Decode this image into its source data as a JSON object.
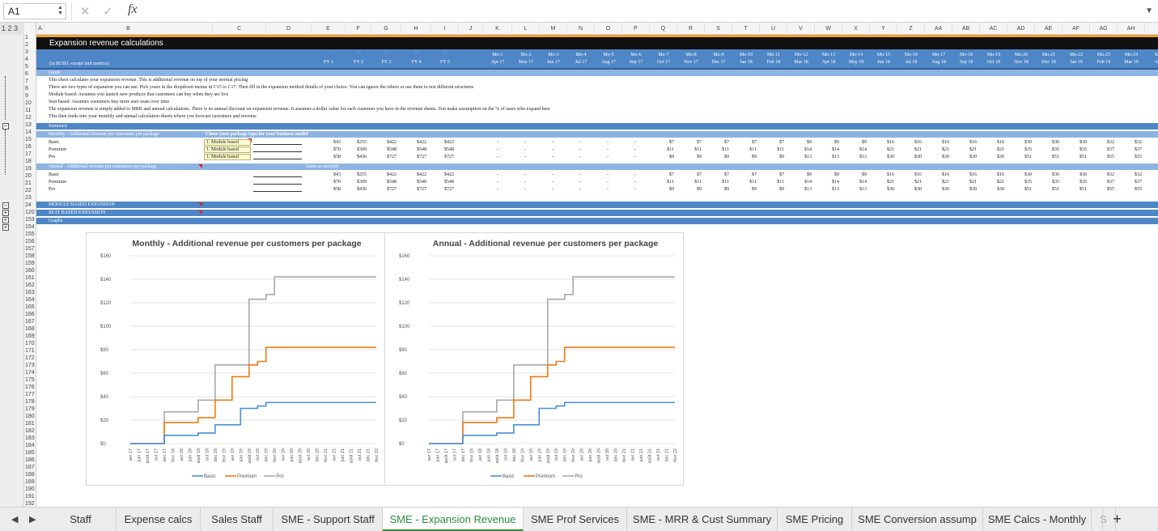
{
  "formula_bar": {
    "cell_ref": "A1",
    "fx_label": "fx",
    "cancel_icon": "x-icon",
    "confirm_icon": "check-icon",
    "formula": ""
  },
  "outline": {
    "levels_label": "1 2 3"
  },
  "columns": [
    "A",
    "B",
    "C",
    "D",
    "E",
    "F",
    "G",
    "H",
    "I",
    "J",
    "K",
    "L",
    "M",
    "N",
    "O",
    "P",
    "Q",
    "R",
    "S",
    "T",
    "U",
    "V",
    "W",
    "X",
    "Y",
    "Z",
    "AA",
    "AB",
    "AC",
    "AD",
    "AE",
    "AF",
    "AG",
    "AH",
    "AI"
  ],
  "rows": [
    "1",
    "2",
    "3",
    "4",
    "5",
    "6",
    "7",
    "8",
    "9",
    "10",
    "11",
    "12",
    "13",
    "14",
    "15",
    "16",
    "17",
    "18",
    "19",
    "20",
    "21",
    "22",
    "23",
    "24",
    "120",
    "153",
    "154",
    "155",
    "156",
    "157",
    "158",
    "159",
    "160",
    "161",
    "162",
    "163",
    "164",
    "165",
    "166",
    "167",
    "168",
    "169",
    "170",
    "171",
    "172",
    "173",
    "174",
    "175",
    "176",
    "177",
    "178",
    "179",
    "180",
    "181",
    "182",
    "183",
    "184",
    "185",
    "186",
    "187",
    "188",
    "189",
    "190",
    "191",
    "192",
    "193"
  ],
  "sheet": {
    "title": "Expansion revenue calculations",
    "fy_headers": [
      "FY 1",
      "FY 2",
      "FY 3",
      "FY 4",
      "FY 5"
    ],
    "fy_numbers": [
      "12",
      "24",
      "36",
      "48",
      "60"
    ],
    "units_label": "(in $USD, except unit metrics)",
    "mo_headers": [
      "Mo-1",
      "Mo-2",
      "Mo-3",
      "Mo-4",
      "Mo-5",
      "Mo-6",
      "Mo-7",
      "Mo-8",
      "Mo-9",
      "Mo-10",
      "Mo-11",
      "Mo-12",
      "Mo-13",
      "Mo-14",
      "Mo-15",
      "Mo-16",
      "Mo-17",
      "Mo-18",
      "Mo-19",
      "Mo-20",
      "Mo-21",
      "Mo-22",
      "Mo-23",
      "Mo-24",
      "Mo-25"
    ],
    "mo_dates": [
      "Apr 17",
      "May 17",
      "Jun 17",
      "Jul 17",
      "Aug 17",
      "Sep 17",
      "Oct 17",
      "Nov 17",
      "Dec 17",
      "Jan 18",
      "Feb 18",
      "Mar 18",
      "Apr 18",
      "May 18",
      "Jun 18",
      "Jul 18",
      "Aug 18",
      "Sep 18",
      "Oct 18",
      "Nov 18",
      "Dec 18",
      "Jan 19",
      "Feb 19",
      "Mar 19",
      "Apr 19"
    ],
    "guide_label": "Guide",
    "guide_lines": [
      "This sheet calculates your expansion revenue. This is additional revenue on top of your normal pricing",
      "There are two types of expansion you can use. Pick yours in the dropdown menus in C15 to C17. Then fill in the expansion method details of your choice. You can ignore the others or use them to test different structures",
      "Module based: Assumes you launch new products that customers can buy when they are live",
      "Seat based: Assumes customers buy more user seats over time",
      "The expansion revenue is simply added to MRR and annual calculations. There is no annual discount on expansion revenue. It assumes a dollar value for each customer you have in the revenue sheets. You make assumption on the % of users who expand here",
      "This then feeds into your monthly and annual calculation sheets where you forecast customers and revenue"
    ],
    "summary_label": "Summary",
    "monthly_label": "Monthly - Additional revenue per customers per package",
    "choose_label": "Chose your package type for your business model",
    "annual_label": "Annual - Additional revenue per customers per package",
    "same_label": "Same as monthly",
    "packages": [
      "Basic",
      "Premium",
      "Pro"
    ],
    "dropdowns": [
      "1. Module based",
      "1. Module based",
      "1. Module based"
    ],
    "fy_values": [
      [
        "$43",
        "$255",
        "$422",
        "$422",
        "$422"
      ],
      [
        "$70",
        "$309",
        "$548",
        "$548",
        "$548"
      ],
      [
        "$58",
        "$436",
        "$727",
        "$727",
        "$727"
      ]
    ],
    "mo_values": [
      [
        "-",
        "-",
        "-",
        "-",
        "-",
        "-",
        "$7",
        "$7",
        "$7",
        "$7",
        "$7",
        "$9",
        "$9",
        "$9",
        "$16",
        "$16",
        "$16",
        "$16",
        "$16",
        "$30",
        "$30",
        "$30",
        "$32",
        "$32",
        "$35"
      ],
      [
        "-",
        "-",
        "-",
        "-",
        "-",
        "-",
        "$11",
        "$11",
        "$11",
        "$11",
        "$11",
        "$14",
        "$14",
        "$14",
        "$21",
        "$21",
        "$21",
        "$21",
        "$21",
        "$35",
        "$35",
        "$35",
        "$37",
        "$37",
        "$46"
      ],
      [
        "-",
        "-",
        "-",
        "-",
        "-",
        "-",
        "$9",
        "$9",
        "$9",
        "$9",
        "$9",
        "$13",
        "$13",
        "$13",
        "$30",
        "$30",
        "$30",
        "$30",
        "$30",
        "$51",
        "$51",
        "$51",
        "$55",
        "$55",
        "$61"
      ]
    ],
    "module_label": "MODULE BASED EXPANSION",
    "seat_label": "SEAT BASED EXPANSION",
    "graphs_label": "Graphs"
  },
  "colors": {
    "header_blue": "#4e86c6",
    "dark_blue": "#2f5f9a",
    "light_blue": "#8db3e2",
    "title_black": "#111111",
    "accent_orange": "#f0a030",
    "basic": "#4a90d9",
    "premium": "#f07a10",
    "pro": "#a9a9a9"
  },
  "chart_data": [
    {
      "type": "line",
      "title": "Monthly - Additional revenue per customers per package",
      "x": [
        "avr 17",
        "juin 17",
        "août 17",
        "oct 17",
        "déc 17",
        "févr 18",
        "avr 18",
        "juin 18",
        "août 18",
        "oct 18",
        "déc 18",
        "févr 19",
        "avr 19",
        "juin 19",
        "août 19",
        "oct 19",
        "déc 19",
        "févr 20",
        "avr 20",
        "juin 20",
        "août 20",
        "oct 20",
        "déc 20",
        "févr 21",
        "avr 21",
        "juin 21",
        "août 21",
        "oct 21",
        "déc 21",
        "févr 22"
      ],
      "ylim": [
        0,
        160
      ],
      "yticks": [
        "$0",
        "$20",
        "$40",
        "$60",
        "$80",
        "$100",
        "$120",
        "$140",
        "$160"
      ],
      "series": [
        {
          "name": "Basic",
          "values": [
            0,
            0,
            0,
            0,
            7,
            7,
            7,
            7,
            9,
            9,
            16,
            16,
            16,
            30,
            30,
            32,
            35,
            35,
            35,
            35,
            35,
            35,
            35,
            35,
            35,
            35,
            35,
            35,
            35,
            35
          ]
        },
        {
          "name": "Premium",
          "values": [
            0,
            0,
            0,
            0,
            18,
            18,
            18,
            18,
            22,
            22,
            37,
            37,
            57,
            57,
            67,
            70,
            82,
            82,
            82,
            82,
            82,
            82,
            82,
            82,
            82,
            82,
            82,
            82,
            82,
            82
          ]
        },
        {
          "name": "Pro",
          "values": [
            0,
            0,
            0,
            0,
            27,
            27,
            27,
            27,
            37,
            37,
            67,
            67,
            67,
            67,
            123,
            123,
            127,
            142,
            142,
            142,
            142,
            142,
            142,
            142,
            142,
            142,
            142,
            142,
            142,
            142
          ]
        }
      ]
    },
    {
      "type": "line",
      "title": "Annual - Additional revenue per customers per package",
      "x": [
        "avr 17",
        "juin 17",
        "août 17",
        "oct 17",
        "déc 17",
        "févr 18",
        "avr 18",
        "juin 18",
        "août 18",
        "oct 18",
        "déc 18",
        "févr 19",
        "avr 19",
        "juin 19",
        "août 19",
        "oct 19",
        "déc 19",
        "févr 20",
        "avr 20",
        "juin 20",
        "août 20",
        "oct 20",
        "déc 20",
        "févr 21",
        "avr 21",
        "juin 21",
        "août 21",
        "oct 21",
        "déc 21",
        "févr 22"
      ],
      "ylim": [
        0,
        160
      ],
      "yticks": [
        "$0",
        "$20",
        "$40",
        "$60",
        "$80",
        "$100",
        "$120",
        "$140",
        "$160"
      ],
      "series": [
        {
          "name": "Basic",
          "values": [
            0,
            0,
            0,
            0,
            7,
            7,
            7,
            7,
            9,
            9,
            16,
            16,
            16,
            30,
            30,
            32,
            35,
            35,
            35,
            35,
            35,
            35,
            35,
            35,
            35,
            35,
            35,
            35,
            35,
            35
          ]
        },
        {
          "name": "Premium",
          "values": [
            0,
            0,
            0,
            0,
            18,
            18,
            18,
            18,
            22,
            22,
            37,
            37,
            57,
            57,
            67,
            70,
            82,
            82,
            82,
            82,
            82,
            82,
            82,
            82,
            82,
            82,
            82,
            82,
            82,
            82
          ]
        },
        {
          "name": "Pro",
          "values": [
            0,
            0,
            0,
            0,
            27,
            27,
            27,
            27,
            37,
            37,
            67,
            67,
            67,
            67,
            123,
            123,
            127,
            142,
            142,
            142,
            142,
            142,
            142,
            142,
            142,
            142,
            142,
            142,
            142,
            142
          ]
        }
      ]
    }
  ],
  "tabs": {
    "items": [
      "Staff",
      "Expense calcs",
      "Sales Staff",
      "SME - Support Staff",
      "SME - Expansion Revenue",
      "SME Prof Services",
      "SME - MRR & Cust Summary",
      "SME Pricing",
      "SME Conversion assump",
      "SME Calcs - Monthly",
      "S"
    ],
    "active": "SME - Expansion Revenue",
    "add_label": "+",
    "prev_icon": "triangle-left-icon",
    "next_icon": "triangle-right-icon"
  }
}
